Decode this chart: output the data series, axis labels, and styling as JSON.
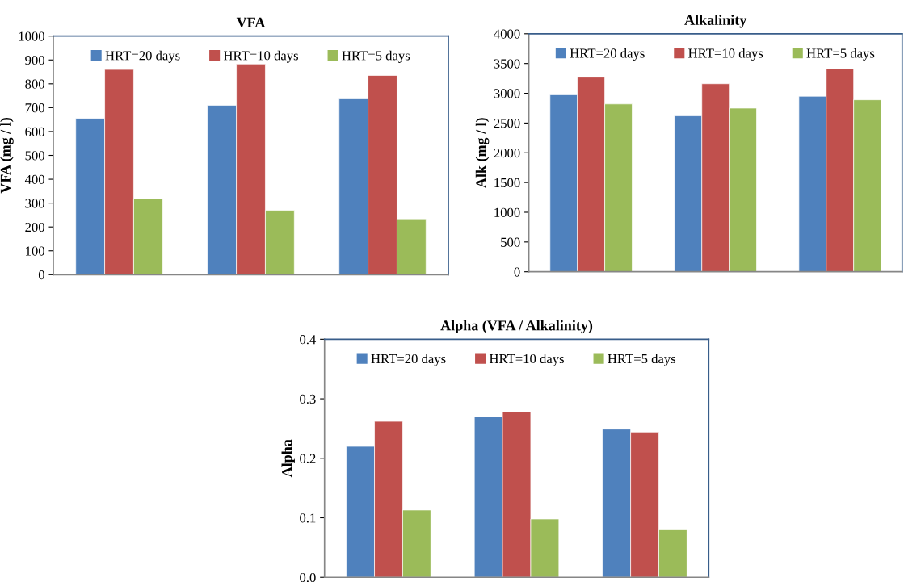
{
  "chart_data": [
    {
      "type": "bar",
      "title": "VFA",
      "ylabel": "VFA (mg / l)",
      "categories": [
        null,
        null,
        null
      ],
      "ylim": [
        0,
        1000
      ],
      "yticks": [
        0,
        100,
        200,
        300,
        400,
        500,
        600,
        700,
        800,
        900,
        1000
      ],
      "grid": false,
      "legend": "top",
      "series": [
        {
          "name": "HRT=20 days",
          "color": "#4f81bd",
          "values": [
            655,
            710,
            737
          ]
        },
        {
          "name": "HRT=10 days",
          "color": "#c0504d",
          "values": [
            860,
            883,
            835
          ]
        },
        {
          "name": "HRT=5 days",
          "color": "#9bbb59",
          "values": [
            318,
            270,
            234
          ]
        }
      ]
    },
    {
      "type": "bar",
      "title": "Alkalinity",
      "ylabel": "Alk (mg / l)",
      "categories": [
        null,
        null,
        null
      ],
      "ylim": [
        0,
        4000
      ],
      "yticks": [
        0,
        500,
        1000,
        1500,
        2000,
        2500,
        3000,
        3500,
        4000
      ],
      "grid": false,
      "legend": "top",
      "series": [
        {
          "name": "HRT=20 days",
          "color": "#4f81bd",
          "values": [
            2975,
            2620,
            2950
          ]
        },
        {
          "name": "HRT=10 days",
          "color": "#c0504d",
          "values": [
            3270,
            3160,
            3410
          ]
        },
        {
          "name": "HRT=5 days",
          "color": "#9bbb59",
          "values": [
            2820,
            2750,
            2890
          ]
        }
      ]
    },
    {
      "type": "bar",
      "title": "Alpha (VFA / Alkalinity)",
      "ylabel": "Alpha",
      "categories": [
        null,
        null,
        null
      ],
      "ylim": [
        0,
        0.4
      ],
      "yticks": [
        {
          "value": 0,
          "label": "0.0"
        },
        0.1,
        0.2,
        0.3,
        0.4
      ],
      "grid": false,
      "legend": "top",
      "series": [
        {
          "name": "HRT=20 days",
          "color": "#4f81bd",
          "values": [
            0.22,
            0.27,
            0.249
          ]
        },
        {
          "name": "HRT=10 days",
          "color": "#c0504d",
          "values": [
            0.262,
            0.278,
            0.244
          ]
        },
        {
          "name": "HRT=5 days",
          "color": "#9bbb59",
          "values": [
            0.113,
            0.098,
            0.081
          ]
        }
      ]
    }
  ]
}
